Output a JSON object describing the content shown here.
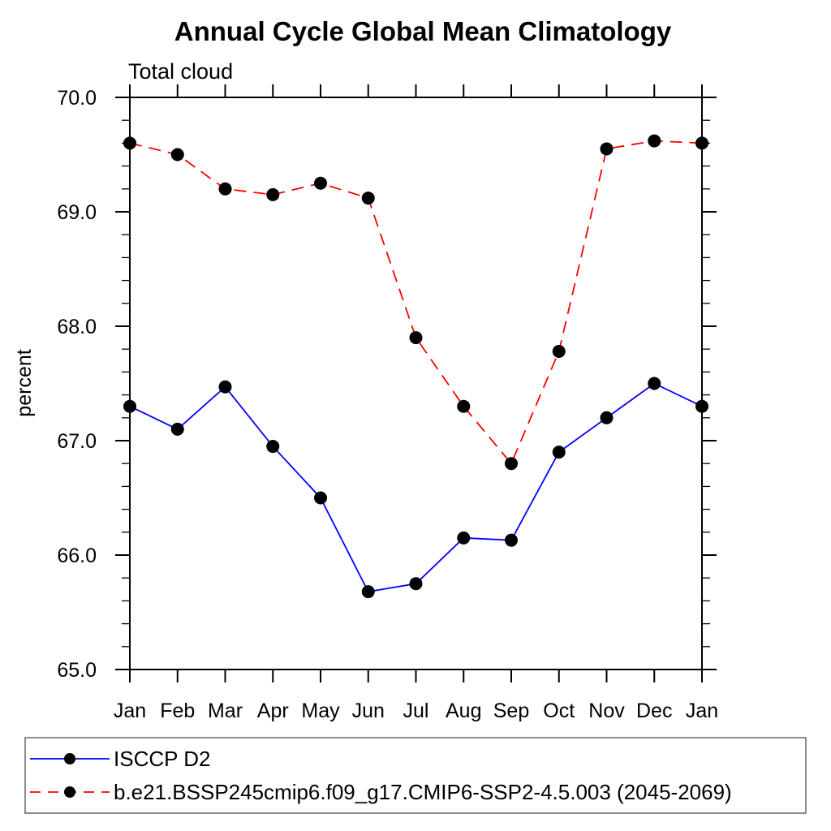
{
  "chart_data": {
    "type": "line",
    "title": "Annual Cycle Global Mean Climatology",
    "subtitle": "Total cloud",
    "ylabel": "percent",
    "ylim": [
      65.0,
      70.0
    ],
    "y_major_step": 1.0,
    "y_minor_step": 0.2,
    "y_tick_labels": [
      "70.0",
      "69.0",
      "68.0",
      "67.0",
      "66.0",
      "65.0"
    ],
    "categories": [
      "Jan",
      "Feb",
      "Mar",
      "Apr",
      "May",
      "Jun",
      "Jul",
      "Aug",
      "Sep",
      "Oct",
      "Nov",
      "Dec",
      "Jan"
    ],
    "grid": false,
    "legend_position": "bottom",
    "marker_color": "#000000",
    "axis_color": "#000000",
    "series": [
      {
        "name": "ISCCP D2",
        "color": "#0000ff",
        "style": "solid",
        "marker": "filled-circle",
        "values": [
          67.3,
          67.1,
          67.47,
          66.95,
          66.5,
          65.68,
          65.75,
          66.15,
          66.13,
          66.9,
          67.2,
          67.5,
          67.3
        ]
      },
      {
        "name": "b.e21.BSSP245cmip6.f09_g17.CMIP6-SSP2-4.5.003 (2045-2069)",
        "color": "#ff0000",
        "style": "dashed",
        "marker": "filled-circle",
        "values": [
          69.6,
          69.5,
          69.2,
          69.15,
          69.25,
          69.12,
          67.9,
          67.3,
          66.8,
          67.78,
          69.55,
          69.62,
          69.6
        ]
      }
    ]
  }
}
